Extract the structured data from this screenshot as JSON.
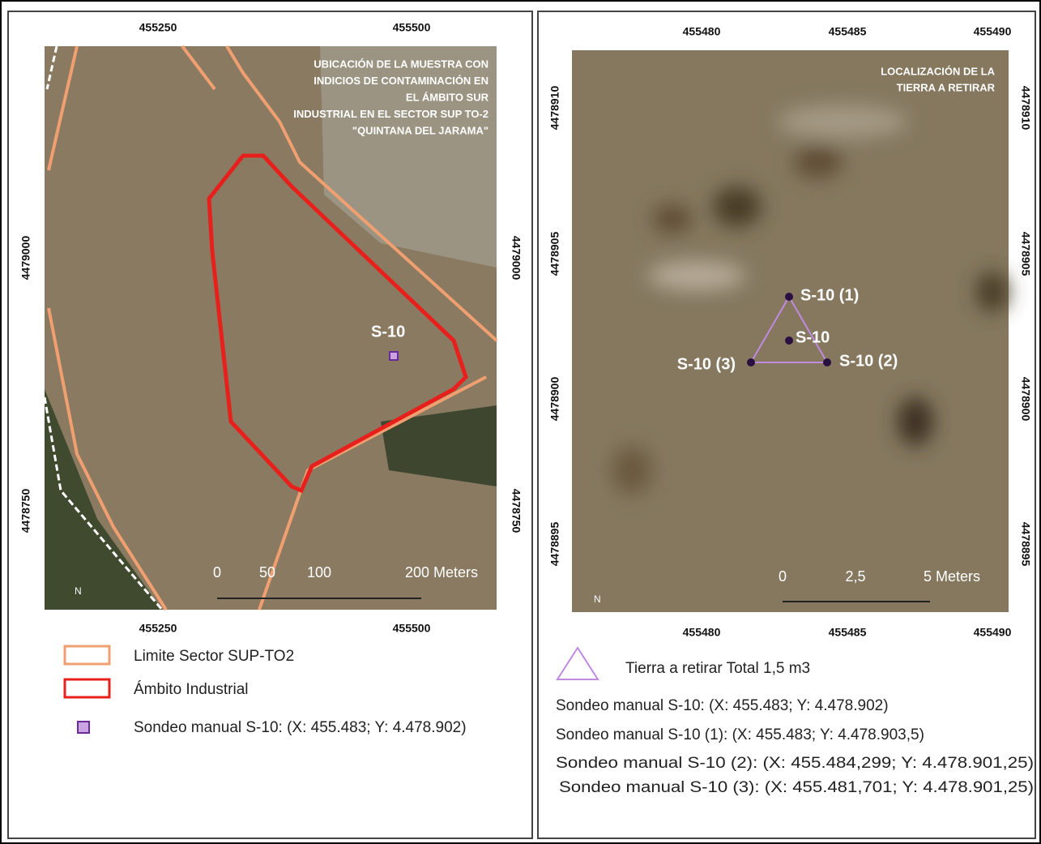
{
  "left_map": {
    "title": [
      "UBICACIÓN DE LA MUESTRA CON",
      "INDICIOS DE CONTAMINACIÓN EN",
      "EL ÁMBITO SUR",
      "INDUSTRIAL EN EL SECTOR SUP TO-2",
      "\"QUINTANA DEL JARAMA\""
    ],
    "x_ticks": [
      "455250",
      "455500"
    ],
    "y_ticks": [
      "4479000",
      "4478750"
    ],
    "point_label": "S-10",
    "scale_labels": [
      "0",
      "50",
      "100",
      "200 Meters"
    ],
    "legend": [
      "Limite Sector SUP-TO2",
      "Ámbito Industrial",
      "Sondeo manual S-10: (X: 455.483; Y: 4.478.902)"
    ]
  },
  "right_map": {
    "title": [
      "LOCALIZACIÓN DE LA",
      "TIERRA A RETIRAR"
    ],
    "x_ticks": [
      "455480",
      "455485",
      "455490"
    ],
    "y_ticks": [
      "4478910",
      "4478905",
      "4478900",
      "4478895"
    ],
    "point_labels": [
      "S-10 (1)",
      "S-10",
      "S-10 (2)",
      "S-10 (3)"
    ],
    "scale_labels": [
      "0",
      "2,5",
      "5 Meters"
    ],
    "legend": [
      "Tierra a retirar Total 1,5 m3",
      "Sondeo manual S-10: (X: 455.483; Y: 4.478.902)",
      "Sondeo manual S-10 (1): (X: 455.483; Y: 4.478.903,5)",
      "Sondeo manual S-10 (2):  (X: 455.484,299; Y: 4.478.901,25)",
      "Sondeo manual S-10 (3): (X: 455.481,701; Y: 4.478.901,25)"
    ]
  }
}
